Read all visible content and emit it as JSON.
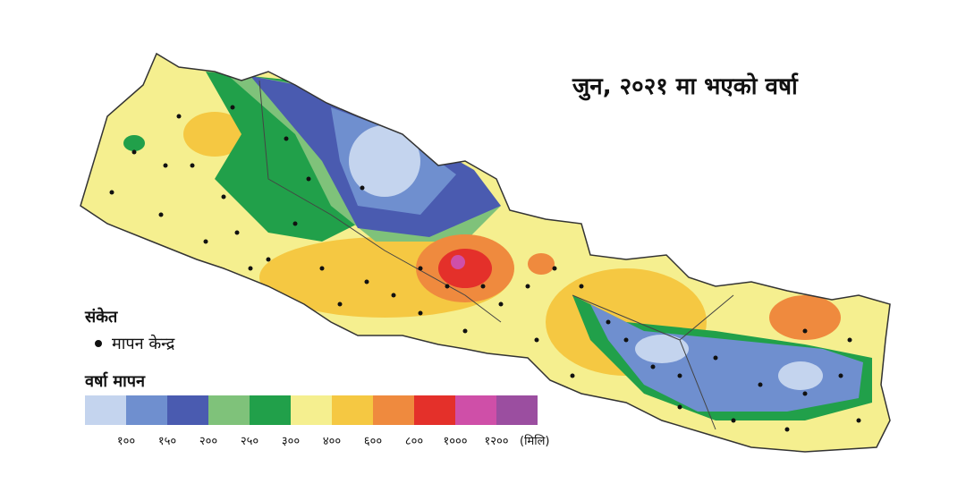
{
  "title": "जुन, २०२१ मा भएको वर्षा",
  "legend": {
    "heading": "संकेत",
    "station_label": "मापन केन्द्र",
    "scale_title": "वर्षा मापन",
    "colors": [
      "#c4d4ee",
      "#6f8fcf",
      "#4a5bb0",
      "#7fc27a",
      "#21a04a",
      "#f5ef8f",
      "#f5c842",
      "#ef8a3e",
      "#e4302a",
      "#cf4fa8",
      "#9b4ea0"
    ],
    "ticks": [
      "१००",
      "१५०",
      "२००",
      "२५०",
      "३००",
      "४००",
      "६००",
      "८००",
      "१०००",
      "१२००"
    ],
    "unit": "(मिलि)"
  }
}
